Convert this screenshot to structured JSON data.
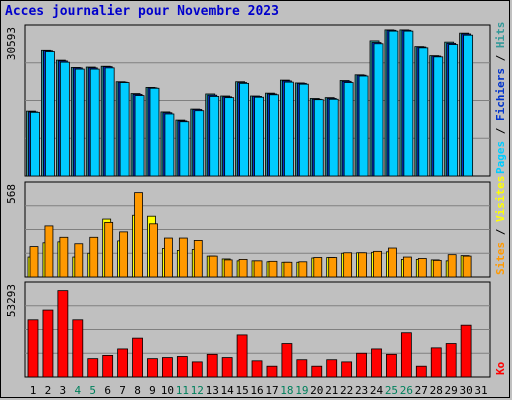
{
  "title": "Acces journalier pour Novembre 2023",
  "chart_data": [
    {
      "type": "bar",
      "panel": "top",
      "categories": [
        "1",
        "2",
        "3",
        "4",
        "5",
        "6",
        "7",
        "8",
        "9",
        "10",
        "11",
        "12",
        "13",
        "14",
        "15",
        "16",
        "17",
        "18",
        "19",
        "20",
        "21",
        "22",
        "23",
        "24",
        "25",
        "26",
        "27",
        "28",
        "29",
        "30",
        "31"
      ],
      "series": [
        {
          "name": "Hits",
          "color": "#339999",
          "values": [
            15900,
            30800,
            28400,
            26600,
            26700,
            26900,
            23100,
            20200,
            21700,
            15700,
            13700,
            16400,
            20100,
            19600,
            23100,
            19600,
            20300,
            23500,
            22800,
            19000,
            19200,
            23400,
            24800,
            33100,
            35800,
            35800,
            31700,
            29500,
            32800,
            35000,
            null
          ]
        },
        {
          "name": "Fichiers",
          "color": "#0033cc",
          "values": [
            15700,
            30700,
            28200,
            26500,
            26500,
            26800,
            23000,
            20000,
            21600,
            15500,
            13500,
            16300,
            19800,
            19400,
            22900,
            19500,
            20100,
            23300,
            22700,
            18800,
            19000,
            23200,
            24700,
            32700,
            35700,
            35700,
            31600,
            29400,
            32500,
            34800,
            null
          ]
        },
        {
          "name": "Pages",
          "color": "#00ccff",
          "values": [
            15600,
            30500,
            27900,
            26200,
            26200,
            26500,
            22900,
            19700,
            21500,
            15200,
            13300,
            16000,
            19500,
            19200,
            22700,
            19300,
            19900,
            23000,
            22500,
            18700,
            18800,
            22900,
            24500,
            32400,
            35500,
            35500,
            31400,
            29200,
            32200,
            34500,
            null
          ]
        }
      ],
      "tick_label": "30593",
      "right_label": [
        "Pages",
        "Fichiers",
        "Hits"
      ]
    },
    {
      "type": "bar",
      "panel": "middle",
      "categories": [
        "1",
        "2",
        "3",
        "4",
        "5",
        "6",
        "7",
        "8",
        "9",
        "10",
        "11",
        "12",
        "13",
        "14",
        "15",
        "16",
        "17",
        "18",
        "19",
        "20",
        "21",
        "22",
        "23",
        "24",
        "25",
        "26",
        "27",
        "28",
        "29",
        "30",
        "31"
      ],
      "series": [
        {
          "name": "Visites",
          "color": "#ffff00",
          "values": [
            210,
            360,
            370,
            210,
            250,
            610,
            380,
            650,
            640,
            300,
            280,
            290,
            220,
            190,
            170,
            170,
            160,
            155,
            155,
            200,
            205,
            250,
            255,
            260,
            265,
            185,
            185,
            180,
            170,
            225,
            null
          ]
        },
        {
          "name": "Sites",
          "color": "#ff9900",
          "values": [
            320,
            538,
            418,
            350,
            418,
            575,
            475,
            888,
            560,
            410,
            410,
            385,
            220,
            180,
            185,
            170,
            165,
            155,
            160,
            205,
            205,
            255,
            255,
            270,
            305,
            210,
            195,
            175,
            235,
            220,
            null
          ]
        }
      ],
      "tick_label": "568",
      "right_label": [
        "Sites",
        "Visites"
      ]
    },
    {
      "type": "bar",
      "panel": "bottom",
      "categories": [
        "1",
        "2",
        "3",
        "4",
        "5",
        "6",
        "7",
        "8",
        "9",
        "10",
        "11",
        "12",
        "13",
        "14",
        "15",
        "16",
        "17",
        "18",
        "19",
        "20",
        "21",
        "22",
        "23",
        "24",
        "25",
        "26",
        "27",
        "28",
        "29",
        "30",
        "31"
      ],
      "series": [
        {
          "name": "Ko",
          "color": "#ff0000",
          "values": [
            53000,
            62000,
            80000,
            53000,
            17000,
            20000,
            26000,
            36000,
            17000,
            18000,
            19000,
            14000,
            21000,
            18000,
            39000,
            15000,
            10000,
            31000,
            16000,
            10000,
            16000,
            14000,
            22000,
            26000,
            21000,
            41000,
            10000,
            27000,
            31000,
            48000,
            null
          ]
        }
      ],
      "tick_label": "53293",
      "right_label": [
        "Ko"
      ]
    }
  ],
  "x_labels": [
    {
      "text": "1",
      "weekend": false
    },
    {
      "text": "2",
      "weekend": false
    },
    {
      "text": "3",
      "weekend": false
    },
    {
      "text": "4",
      "weekend": true
    },
    {
      "text": "5",
      "weekend": true
    },
    {
      "text": "6",
      "weekend": false
    },
    {
      "text": "7",
      "weekend": false
    },
    {
      "text": "8",
      "weekend": false
    },
    {
      "text": "9",
      "weekend": false
    },
    {
      "text": "10",
      "weekend": false
    },
    {
      "text": "11",
      "weekend": true
    },
    {
      "text": "12",
      "weekend": true
    },
    {
      "text": "13",
      "weekend": false
    },
    {
      "text": "14",
      "weekend": false
    },
    {
      "text": "15",
      "weekend": false
    },
    {
      "text": "16",
      "weekend": false
    },
    {
      "text": "17",
      "weekend": false
    },
    {
      "text": "18",
      "weekend": true
    },
    {
      "text": "19",
      "weekend": true
    },
    {
      "text": "20",
      "weekend": false
    },
    {
      "text": "21",
      "weekend": false
    },
    {
      "text": "22",
      "weekend": false
    },
    {
      "text": "23",
      "weekend": false
    },
    {
      "text": "24",
      "weekend": false
    },
    {
      "text": "25",
      "weekend": true
    },
    {
      "text": "26",
      "weekend": true
    },
    {
      "text": "27",
      "weekend": false
    },
    {
      "text": "28",
      "weekend": false
    },
    {
      "text": "29",
      "weekend": false
    },
    {
      "text": "30",
      "weekend": false
    },
    {
      "text": "31",
      "weekend": false
    }
  ],
  "colors": {
    "background": "#c0c0c0",
    "title": "#0000cc",
    "weekday_label": "#000000",
    "weekend_label": "#00805c",
    "grid": "#808080",
    "separator": "#000000",
    "right_label_colors": {
      "Pages": "#00ccff",
      "Fichiers": "#0033cc",
      "Hits": "#339999",
      "Sites": "#ff9900",
      "Visites": "#ffff00",
      "Ko": "#ff0000",
      "slash": "#000000"
    }
  }
}
